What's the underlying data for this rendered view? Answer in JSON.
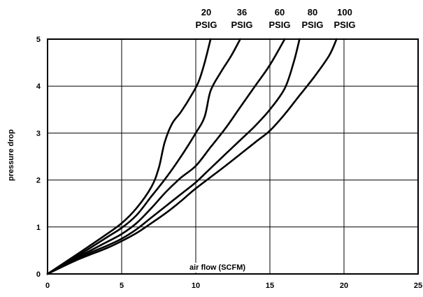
{
  "chart_data": {
    "type": "line",
    "xlabel": "air flow (SCFM)",
    "ylabel": "pressure drop",
    "xlim": [
      0,
      25
    ],
    "ylim": [
      0,
      5
    ],
    "x_ticks": [
      "0",
      "5",
      "10",
      "15",
      "20",
      "25"
    ],
    "y_ticks": [
      "0",
      "1",
      "2",
      "3",
      "4",
      "5"
    ],
    "grid": true,
    "legend_placement": "top (curve labels above plot)",
    "series": [
      {
        "name": "20 PSIG",
        "label_top": "20",
        "label_bottom": "PSIG",
        "points": [
          [
            0,
            0
          ],
          [
            2,
            0.42
          ],
          [
            4,
            0.85
          ],
          [
            5,
            1.08
          ],
          [
            6,
            1.4
          ],
          [
            7,
            1.85
          ],
          [
            7.5,
            2.25
          ],
          [
            7.9,
            2.8
          ],
          [
            8.4,
            3.2
          ],
          [
            9,
            3.45
          ],
          [
            9.7,
            3.8
          ],
          [
            10.2,
            4.1
          ],
          [
            10.6,
            4.5
          ],
          [
            11,
            5.0
          ]
        ]
      },
      {
        "name": "36 PSIG",
        "label_top": "36",
        "label_bottom": "PSIG",
        "points": [
          [
            0,
            0
          ],
          [
            2,
            0.38
          ],
          [
            4,
            0.78
          ],
          [
            5,
            0.98
          ],
          [
            6,
            1.25
          ],
          [
            7,
            1.65
          ],
          [
            8,
            2.05
          ],
          [
            9,
            2.5
          ],
          [
            10,
            3.0
          ],
          [
            10.6,
            3.35
          ],
          [
            11,
            3.9
          ],
          [
            11.7,
            4.3
          ],
          [
            12.4,
            4.65
          ],
          [
            13,
            5.0
          ]
        ]
      },
      {
        "name": "60 PSIG",
        "label_top": "60",
        "label_bottom": "PSIG",
        "points": [
          [
            0,
            0
          ],
          [
            2,
            0.35
          ],
          [
            4,
            0.68
          ],
          [
            5,
            0.85
          ],
          [
            6,
            1.08
          ],
          [
            7,
            1.4
          ],
          [
            8,
            1.75
          ],
          [
            9,
            2.05
          ],
          [
            10,
            2.3
          ],
          [
            11,
            2.7
          ],
          [
            12,
            3.1
          ],
          [
            13,
            3.55
          ],
          [
            14,
            4.0
          ],
          [
            15,
            4.45
          ],
          [
            16,
            5.0
          ]
        ]
      },
      {
        "name": "80 PSIG",
        "label_top": "80",
        "label_bottom": "PSIG",
        "points": [
          [
            0,
            0
          ],
          [
            2,
            0.33
          ],
          [
            4,
            0.6
          ],
          [
            5,
            0.75
          ],
          [
            6,
            0.95
          ],
          [
            7,
            1.2
          ],
          [
            8,
            1.45
          ],
          [
            9,
            1.7
          ],
          [
            10,
            1.95
          ],
          [
            11,
            2.25
          ],
          [
            12,
            2.55
          ],
          [
            13,
            2.85
          ],
          [
            14,
            3.15
          ],
          [
            15,
            3.5
          ],
          [
            16,
            3.95
          ],
          [
            16.6,
            4.5
          ],
          [
            17,
            5.0
          ]
        ]
      },
      {
        "name": "100 PSIG",
        "label_top": "100",
        "label_bottom": "PSIG",
        "points": [
          [
            0,
            0
          ],
          [
            2,
            0.3
          ],
          [
            4,
            0.55
          ],
          [
            5,
            0.7
          ],
          [
            6,
            0.87
          ],
          [
            7,
            1.08
          ],
          [
            8,
            1.3
          ],
          [
            9,
            1.55
          ],
          [
            10,
            1.82
          ],
          [
            12,
            2.3
          ],
          [
            14,
            2.8
          ],
          [
            15,
            3.05
          ],
          [
            16,
            3.4
          ],
          [
            17,
            3.8
          ],
          [
            18,
            4.2
          ],
          [
            19,
            4.65
          ],
          [
            19.5,
            5.0
          ]
        ]
      }
    ]
  }
}
